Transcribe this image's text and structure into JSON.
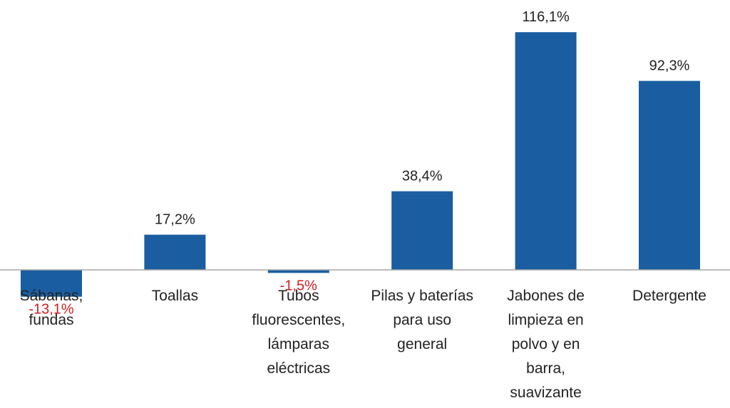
{
  "chart_data": {
    "type": "bar",
    "title": "",
    "xlabel": "",
    "ylabel": "",
    "categories": [
      [
        "Sábanas,",
        "fundas"
      ],
      [
        "Toallas"
      ],
      [
        "Tubos",
        "fluorescentes,",
        "lámparas",
        "eléctricas"
      ],
      [
        "Pilas y baterías",
        "para uso",
        "general"
      ],
      [
        "Jabones de",
        "limpieza en",
        "polvo y en",
        "barra,",
        "suavizante"
      ],
      [
        "Detergente"
      ]
    ],
    "values": [
      -13.1,
      17.2,
      -1.5,
      38.4,
      116.1,
      92.3
    ],
    "value_labels": [
      "-13,1%",
      "17,2%",
      "-1,5%",
      "38,4%",
      "116,1%",
      "92,3%"
    ],
    "ylim": [
      -20,
      120
    ],
    "grid": false,
    "bar_color": "#1a5ea1",
    "negative_label_color": "#d21f1f",
    "axis_color": "#a6a6a6"
  }
}
